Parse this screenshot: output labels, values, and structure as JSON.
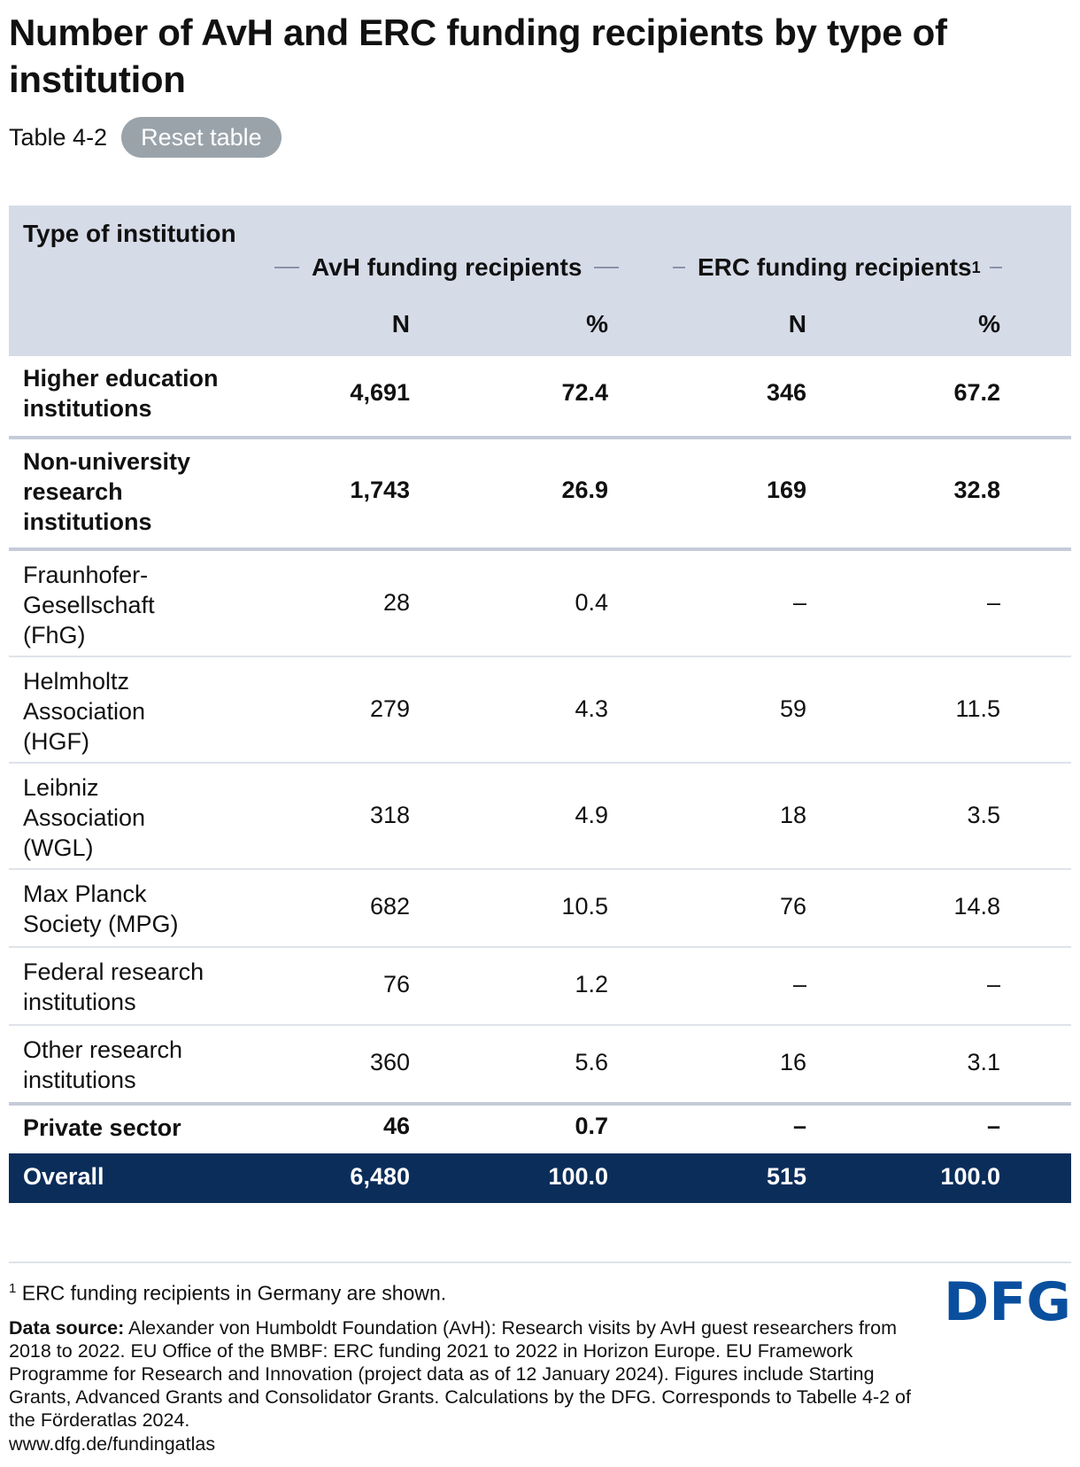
{
  "title": "Number of AvH and ERC funding recipients by type of institution",
  "table_label": "Table 4-2",
  "reset_label": "Reset table",
  "header": {
    "type_col": "Type of institution",
    "group_avh": "AvH funding recipients",
    "group_erc": "ERC funding recipients",
    "group_erc_note": "1",
    "sub_n1": "N",
    "sub_p1": "%",
    "sub_n2": "N",
    "sub_p2": "%"
  },
  "rows": [
    {
      "label": "Higher education institutions",
      "avh_n": "4,691",
      "avh_p": "72.4",
      "erc_n": "346",
      "erc_p": "67.2"
    },
    {
      "label": "Non-university research institutions",
      "avh_n": "1,743",
      "avh_p": "26.9",
      "erc_n": "169",
      "erc_p": "32.8"
    },
    {
      "label": "Fraunhofer-Gesellschaft (FhG)",
      "avh_n": "28",
      "avh_p": "0.4",
      "erc_n": "–",
      "erc_p": "–"
    },
    {
      "label": "Helmholtz Association (HGF)",
      "avh_n": "279",
      "avh_p": "4.3",
      "erc_n": "59",
      "erc_p": "11.5"
    },
    {
      "label": "Leibniz Association (WGL)",
      "avh_n": "318",
      "avh_p": "4.9",
      "erc_n": "18",
      "erc_p": "3.5"
    },
    {
      "label": "Max Planck Society (MPG)",
      "avh_n": "682",
      "avh_p": "10.5",
      "erc_n": "76",
      "erc_p": "14.8"
    },
    {
      "label": "Federal research institutions",
      "avh_n": "76",
      "avh_p": "1.2",
      "erc_n": "–",
      "erc_p": "–"
    },
    {
      "label": "Other research institutions",
      "avh_n": "360",
      "avh_p": "5.6",
      "erc_n": "16",
      "erc_p": "3.1"
    },
    {
      "label": "Private sector",
      "avh_n": "46",
      "avh_p": "0.7",
      "erc_n": "–",
      "erc_p": "–"
    }
  ],
  "total": {
    "label": "Overall",
    "avh_n": "6,480",
    "avh_p": "100.0",
    "erc_n": "515",
    "erc_p": "100.0"
  },
  "footnote_mark": "1",
  "footnote_text": "ERC funding recipients in Germany are shown.",
  "source_label": "Data source:",
  "source_text": "Alexander von Humboldt Foundation (AvH): Research visits by AvH guest researchers from 2018 to 2022. EU Office of the BMBF: ERC funding 2021 to 2022 in Horizon Europe. EU Framework Programme for Research and Innovation (project data as of 12 January 2024). Figures include Starting Grants, Advanced Grants and Consolidator Grants. Calculations by the DFG. Corresponds to Tabelle 4-2 of the Förderatlas 2024.",
  "url": "www.dfg.de/fundingatlas",
  "logo_text": "DFG",
  "colors": {
    "header_bg": "#d6dbe8",
    "total_bg": "#0b2d5a",
    "logo": "#0a4f9e",
    "button": "#9aa3aa"
  }
}
